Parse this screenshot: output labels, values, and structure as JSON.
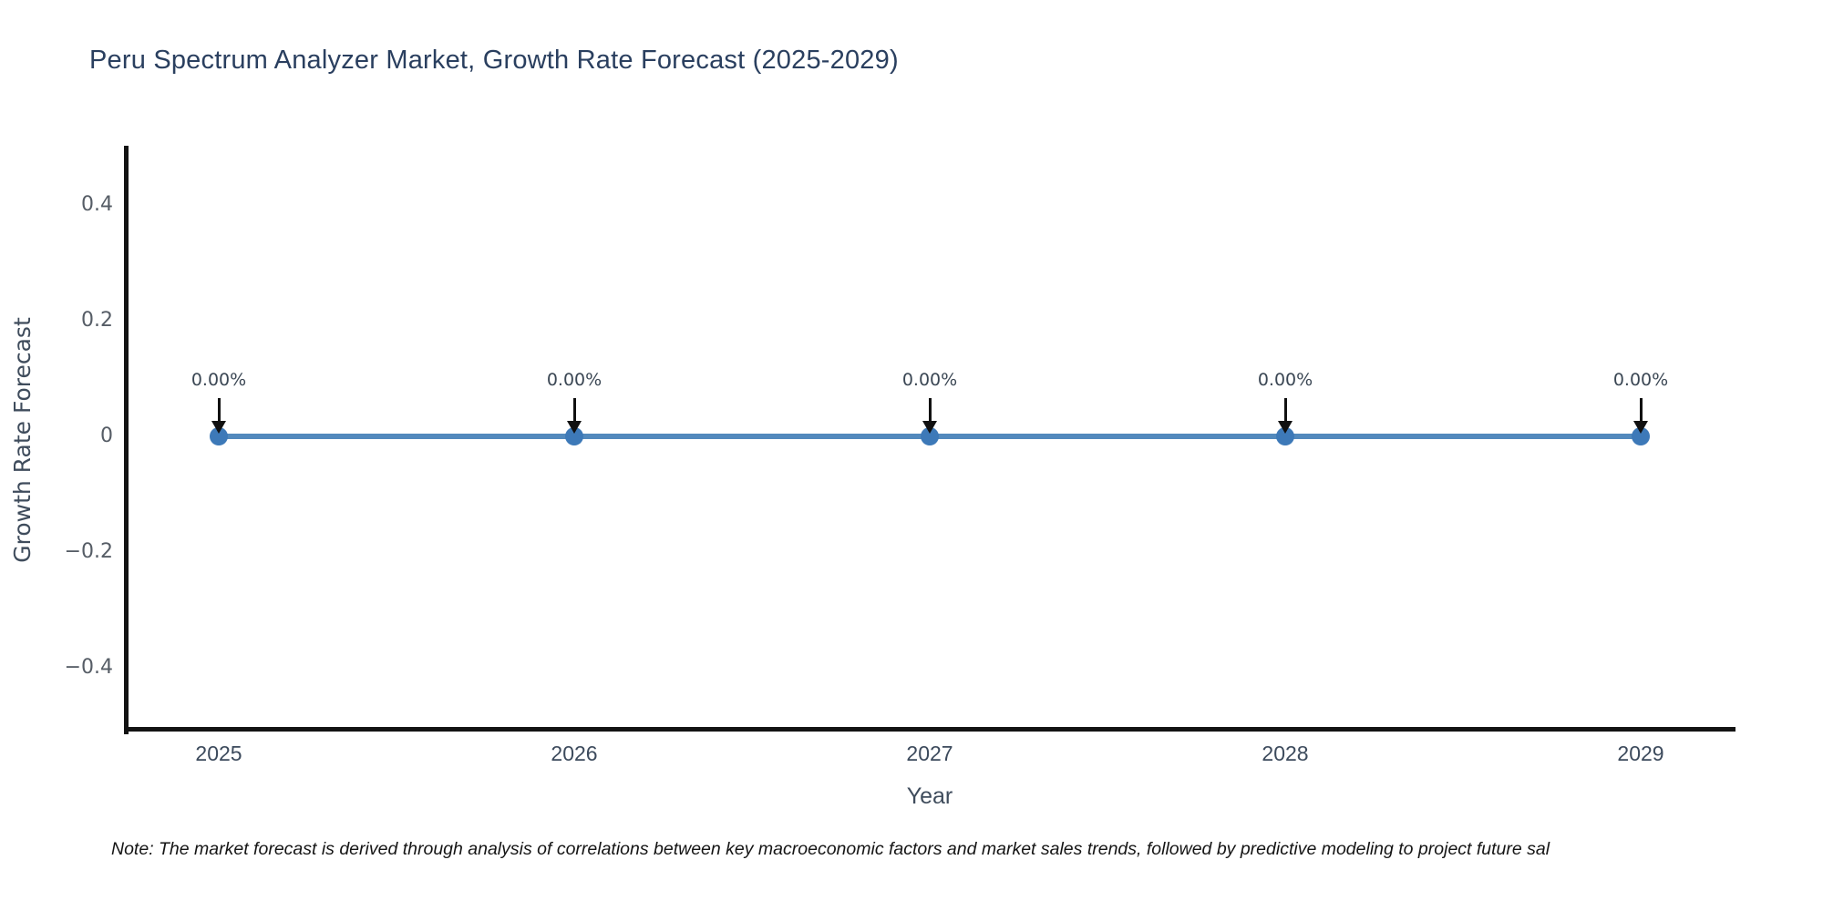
{
  "chart_data": {
    "type": "line",
    "title": "Peru Spectrum Analyzer Market, Growth Rate Forecast (2025-2029)",
    "xlabel": "Year",
    "ylabel": "Growth Rate Forecast",
    "categories": [
      "2025",
      "2026",
      "2027",
      "2028",
      "2029"
    ],
    "values": [
      0,
      0,
      0,
      0,
      0
    ],
    "point_labels": [
      "0.00%",
      "0.00%",
      "0.00%",
      "0.00%",
      "0.00%"
    ],
    "yticks": {
      "values": [
        0.4,
        0.2,
        0,
        -0.2,
        -0.4
      ],
      "labels": [
        "0.4",
        "0.2",
        "0",
        "−0.2",
        "−0.4"
      ]
    },
    "ylim": [
      -0.51,
      0.5
    ],
    "grid": false,
    "legend": false,
    "annotation_arrows": "black arrow pointing down to each data point",
    "note": "Note: The market forecast is derived through analysis of correlations between key macroeconomic factors and market sales trends, followed by predictive modeling to project future sal"
  },
  "colors": {
    "title": "#2a3f5f",
    "axis_title": "#3f4c5c",
    "ytick": "#565d66",
    "xtick": "#3c4a5c",
    "annotation_text": "#3b4754",
    "arrow": "#111111",
    "line": "#5289bd",
    "marker": "#3d79b8",
    "axis": "#131313",
    "note": "#151515",
    "background": "#ffffff"
  }
}
